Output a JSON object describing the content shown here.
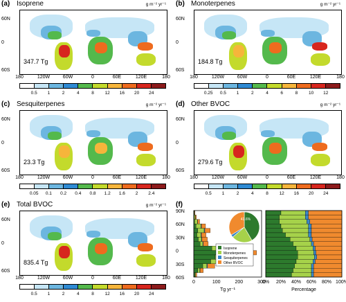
{
  "colors": [
    "#ffffff",
    "#c6e6f6",
    "#6cb6e0",
    "#2e8ad3",
    "#54b94c",
    "#c3da2c",
    "#f6b53b",
    "#ee6b1e",
    "#d7261e",
    "#8c1a1b"
  ],
  "unit": "g m⁻² yr⁻¹",
  "lat_ticks": [
    "60N",
    "0",
    "60S"
  ],
  "lon_ticks": [
    "180",
    "120W",
    "60W",
    "0",
    "60E",
    "120E",
    "180"
  ],
  "panels": [
    {
      "letter": "(a)",
      "name": "Isoprene",
      "total": "347.7 Tg",
      "levels": [
        "0.5",
        "1",
        "2",
        "4",
        "8",
        "12",
        "16",
        "20",
        "24"
      ]
    },
    {
      "letter": "(b)",
      "name": "Monoterpenes",
      "total": "184.8 Tg",
      "levels": [
        "0.25",
        "0.5",
        "1",
        "2",
        "4",
        "6",
        "8",
        "10",
        "12"
      ]
    },
    {
      "letter": "(c)",
      "name": "Sesquiterpenes",
      "total": "23.3 Tg",
      "levels": [
        "0.05",
        "0.1",
        "0.2",
        "0.4",
        "0.8",
        "1.2",
        "1.6",
        "2",
        "2.4"
      ]
    },
    {
      "letter": "(d)",
      "name": "Other BVOC",
      "total": "279.6 Tg",
      "levels": [
        "0.5",
        "1",
        "2",
        "4",
        "8",
        "12",
        "16",
        "20",
        "24"
      ]
    },
    {
      "letter": "(e)",
      "name": "Total BVOC",
      "total": "835.4 Tg",
      "levels": [
        "0.5",
        "1",
        "2",
        "4",
        "8",
        "12",
        "16",
        "20",
        "24"
      ]
    }
  ],
  "panel_f": {
    "letter": "(f)",
    "lat_ticks": [
      "90N",
      "60N",
      "30N",
      "0",
      "30S",
      "60S"
    ],
    "tg_ticks": [
      "0",
      "100",
      "200",
      "300"
    ],
    "tg_label": "Tg yr⁻¹",
    "pct_ticks": [
      "0%",
      "20%",
      "40%",
      "60%",
      "80%",
      "100%"
    ],
    "pct_label": "Percentage",
    "pie_label": "41.6%",
    "legend": [
      {
        "name": "Isoprene",
        "color": "#2d7a2d"
      },
      {
        "name": "Monoterpenes",
        "color": "#a6d24a"
      },
      {
        "name": "Sesquiterpenes",
        "color": "#3a87c8"
      },
      {
        "name": "Other BVOC",
        "color": "#f08a2e"
      }
    ],
    "lat_bands": [
      {
        "iso": 1,
        "mono": 2,
        "ses": 0.3,
        "other": 2
      },
      {
        "iso": 2,
        "mono": 5,
        "ses": 0.5,
        "other": 4
      },
      {
        "iso": 4,
        "mono": 12,
        "ses": 1,
        "other": 9
      },
      {
        "iso": 10,
        "mono": 22,
        "ses": 2,
        "other": 18
      },
      {
        "iso": 18,
        "mono": 28,
        "ses": 3,
        "other": 24
      },
      {
        "iso": 14,
        "mono": 18,
        "ses": 2,
        "other": 20
      },
      {
        "iso": 20,
        "mono": 14,
        "ses": 2,
        "other": 24
      },
      {
        "iso": 28,
        "mono": 12,
        "ses": 2,
        "other": 22
      },
      {
        "iso": 80,
        "mono": 40,
        "ses": 5,
        "other": 60
      },
      {
        "iso": 120,
        "mono": 60,
        "ses": 8,
        "other": 90
      },
      {
        "iso": 95,
        "mono": 45,
        "ses": 6,
        "other": 75
      },
      {
        "iso": 75,
        "mono": 34,
        "ses": 5,
        "other": 60
      },
      {
        "iso": 40,
        "mono": 18,
        "ses": 3,
        "other": 32
      },
      {
        "iso": 18,
        "mono": 9,
        "ses": 1,
        "other": 14
      },
      {
        "iso": 5,
        "mono": 3,
        "ses": 0.5,
        "other": 5
      }
    ],
    "pct_bands": [
      {
        "iso": 20,
        "mono": 32,
        "ses": 4,
        "other": 44
      },
      {
        "iso": 18,
        "mono": 34,
        "ses": 4,
        "other": 44
      },
      {
        "iso": 18,
        "mono": 36,
        "ses": 4,
        "other": 42
      },
      {
        "iso": 20,
        "mono": 36,
        "ses": 4,
        "other": 40
      },
      {
        "iso": 22,
        "mono": 34,
        "ses": 4,
        "other": 40
      },
      {
        "iso": 26,
        "mono": 30,
        "ses": 4,
        "other": 40
      },
      {
        "iso": 32,
        "mono": 26,
        "ses": 3,
        "other": 39
      },
      {
        "iso": 36,
        "mono": 24,
        "ses": 3,
        "other": 37
      },
      {
        "iso": 40,
        "mono": 22,
        "ses": 3,
        "other": 35
      },
      {
        "iso": 42,
        "mono": 21,
        "ses": 3,
        "other": 34
      },
      {
        "iso": 42,
        "mono": 22,
        "ses": 3,
        "other": 33
      },
      {
        "iso": 40,
        "mono": 22,
        "ses": 3,
        "other": 35
      },
      {
        "iso": 38,
        "mono": 22,
        "ses": 3,
        "other": 37
      },
      {
        "iso": 36,
        "mono": 24,
        "ses": 3,
        "other": 37
      },
      {
        "iso": 34,
        "mono": 26,
        "ses": 3,
        "other": 37
      }
    ],
    "pie": [
      {
        "name": "Isoprene",
        "pct": 41.6
      },
      {
        "name": "Monoterpenes",
        "pct": 22.1
      },
      {
        "name": "Sesquiterpenes",
        "pct": 2.8
      },
      {
        "name": "Other BVOC",
        "pct": 33.5
      }
    ]
  }
}
